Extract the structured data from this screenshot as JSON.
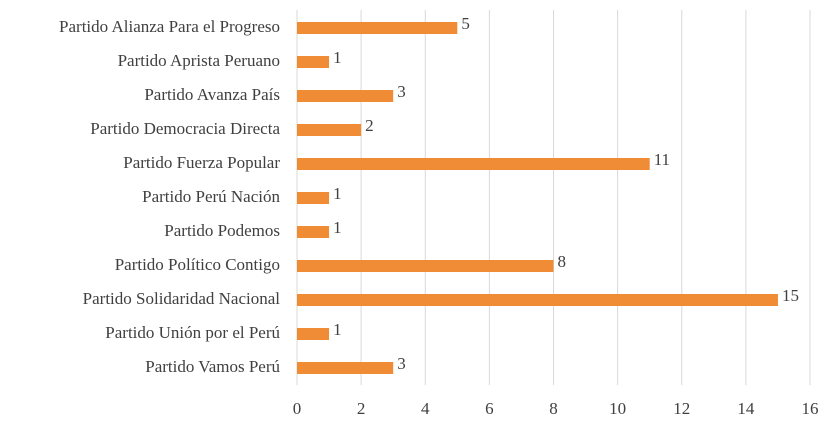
{
  "chart_data": {
    "type": "hbar",
    "categories": [
      "Partido Alianza Para el Progreso",
      "Partido Aprista Peruano",
      "Partido Avanza País",
      "Partido Democracia Directa",
      "Partido Fuerza Popular",
      "Partido Perú Nación",
      "Partido Podemos",
      "Partido Político Contigo",
      "Partido Solidaridad Nacional",
      "Partido Unión por el Perú",
      "Partido Vamos Perú"
    ],
    "values": [
      5,
      1,
      3,
      2,
      11,
      1,
      1,
      8,
      15,
      1,
      3
    ],
    "color": "#f08c35",
    "xlim": [
      0,
      16
    ],
    "xticks": [
      0,
      2,
      4,
      6,
      8,
      10,
      12,
      14,
      16
    ],
    "grid": true
  }
}
